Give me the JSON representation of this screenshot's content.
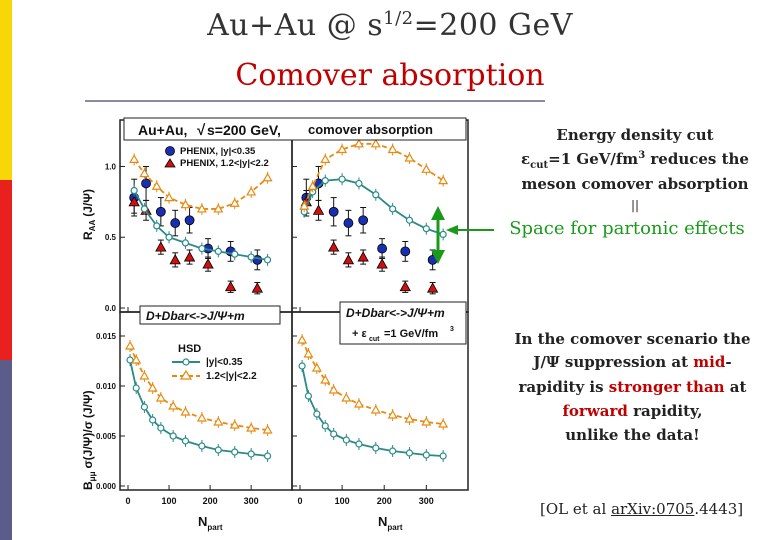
{
  "slide": {
    "title_prefix": "Au+Au @ s",
    "title_sup": "1/2",
    "title_suffix": "=200 GeV",
    "subtitle": "Comover absorption",
    "accent_colors": [
      "#f7d708",
      "#e8201e",
      "#5c5c8a"
    ]
  },
  "right_panel": {
    "energy_line1": "Energy density cut",
    "eps_symbol": "ε",
    "eps_sub": "cut",
    "eps_rest": "=1 GeV/fm",
    "eps_sup": "3",
    "eps_tail": " reduces the",
    "energy_line3": "meson comover absorption",
    "pipe": "||",
    "partonic": "Space for partonic effects",
    "p2_line1": "In the comover scenario the",
    "p2_line2a": "J/Ψ suppression at ",
    "p2_line2b": "mid",
    "p2_line2c": "-",
    "p2_line3a": "rapidity is ",
    "p2_line3b": "stronger than",
    "p2_line3c": " at",
    "p2_line4a": "forward",
    "p2_line4b": " rapidity,",
    "p2_line5": "unlike the data!",
    "citation_prefix": "[OL et al ",
    "citation_link": "arXiv:0705",
    "citation_suffix": ".4443]"
  },
  "figure": {
    "header_a": "Au+Au,",
    "header_sqrt": "√",
    "header_b": "s=200 GeV,",
    "header_c": "comover absorption",
    "legend_phenix_1": "PHENIX, |y|<0.35",
    "legend_phenix_2": "PHENIX, 1.2<|y|<2.2",
    "box_left": "D+Dbar<->J/Ψ+m",
    "box_right": "D+Dbar<->J/Ψ+m",
    "eps_note_a": "+ ε",
    "eps_note_sub": "cut",
    "eps_note_b": "=1 GeV/fm",
    "eps_note_sup": "3",
    "legend_hsd": "HSD",
    "legend_hsd_1": "|y|<0.35",
    "legend_hsd_2": "1.2<|y|<2.2",
    "top_ylabel": "R",
    "top_ylabel_2": "AA",
    "top_ylabel_3": "(J/Ψ)",
    "bot_ylabel": "B",
    "bot_ylabel_2": "μμ",
    "bot_ylabel_3": "σ(J/Ψ)/σ",
    "bot_ylabel_4": "(J/Ψ)",
    "xlabel_left": "N",
    "xlabel_right": "N",
    "xlabel_sub": "part"
  },
  "chart_data": {
    "type": "scatter",
    "title": "Au+Au, √s=200 GeV, comover absorption",
    "xlabel": "Npart",
    "xlim": [
      0,
      380
    ],
    "x_ticks": [
      "0",
      "100",
      "200",
      "300"
    ],
    "panels": [
      {
        "name": "top-left",
        "ylabel": "RAA (J/Ψ)",
        "ylim": [
          0,
          1.3
        ],
        "y_ticks": [
          "0.0",
          "0.5",
          "1.0"
        ],
        "series": [
          {
            "name": "PHENIX, |y|<0.35",
            "x": [
              15,
              44,
              80,
              115,
              150,
              195,
              250,
              315
            ],
            "y": [
              0.78,
              0.88,
              0.68,
              0.6,
              0.62,
              0.42,
              0.4,
              0.34
            ],
            "err": [
              0.13,
              0.12,
              0.1,
              0.09,
              0.09,
              0.07,
              0.07,
              0.07
            ]
          },
          {
            "name": "PHENIX, 1.2<|y|<2.2",
            "x": [
              15,
              44,
              80,
              115,
              150,
              195,
              250,
              315
            ],
            "y": [
              0.75,
              0.69,
              0.43,
              0.34,
              0.36,
              0.31,
              0.15,
              0.14
            ],
            "err": [
              0.08,
              0.07,
              0.05,
              0.05,
              0.05,
              0.05,
              0.04,
              0.04
            ]
          },
          {
            "name": "HSD |y|<0.35",
            "x": [
              15,
              40,
              70,
              100,
              140,
              180,
              220,
              260,
              300,
              340
            ],
            "y": [
              0.83,
              0.7,
              0.58,
              0.5,
              0.46,
              0.42,
              0.4,
              0.38,
              0.36,
              0.34
            ]
          },
          {
            "name": "HSD 1.2<|y|<2.2",
            "x": [
              15,
              40,
              70,
              100,
              140,
              180,
              220,
              260,
              300,
              340
            ],
            "y": [
              1.05,
              0.95,
              0.86,
              0.78,
              0.73,
              0.7,
              0.7,
              0.74,
              0.82,
              0.92
            ]
          }
        ]
      },
      {
        "name": "top-right",
        "ylabel": "RAA (J/Ψ)",
        "ylim": [
          0,
          1.3
        ],
        "y_ticks": [
          "0.0",
          "0.5",
          "1.0"
        ],
        "series": [
          {
            "name": "PHENIX, |y|<0.35",
            "x": [
              15,
              44,
              80,
              115,
              150,
              195,
              250,
              315
            ],
            "y": [
              0.78,
              0.88,
              0.68,
              0.6,
              0.62,
              0.42,
              0.4,
              0.34
            ],
            "err": [
              0.13,
              0.12,
              0.1,
              0.09,
              0.09,
              0.07,
              0.07,
              0.07
            ]
          },
          {
            "name": "PHENIX, 1.2<|y|<2.2",
            "x": [
              15,
              44,
              80,
              115,
              150,
              195,
              250,
              315
            ],
            "y": [
              0.75,
              0.69,
              0.43,
              0.34,
              0.36,
              0.31,
              0.15,
              0.14
            ],
            "err": [
              0.08,
              0.07,
              0.05,
              0.05,
              0.05,
              0.05,
              0.04,
              0.04
            ]
          },
          {
            "name": "HSD |y|<0.35",
            "x": [
              10,
              30,
              60,
              100,
              140,
              180,
              220,
              260,
              300,
              340
            ],
            "y": [
              0.68,
              0.82,
              0.9,
              0.91,
              0.88,
              0.8,
              0.7,
              0.62,
              0.56,
              0.52
            ]
          },
          {
            "name": "HSD 1.2<|y|<2.2",
            "x": [
              10,
              30,
              60,
              100,
              140,
              180,
              220,
              260,
              300,
              340
            ],
            "y": [
              0.72,
              0.86,
              1.05,
              1.12,
              1.16,
              1.16,
              1.12,
              1.06,
              0.98,
              0.9
            ]
          }
        ]
      },
      {
        "name": "bottom-left",
        "ylabel": "Bμμ σ(J/Ψ)/σ(J/Ψ)",
        "ylim": [
          0,
          0.017
        ],
        "y_ticks": [
          "0.000",
          "0.005",
          "0.010",
          "0.015"
        ],
        "series": [
          {
            "name": "HSD |y|<0.35",
            "x": [
              5,
              20,
              40,
              60,
              80,
              110,
              140,
              180,
              220,
              260,
              300,
              340
            ],
            "y": [
              0.0126,
              0.0098,
              0.0079,
              0.0066,
              0.0058,
              0.005,
              0.0045,
              0.004,
              0.0036,
              0.0034,
              0.0032,
              0.003
            ]
          },
          {
            "name": "HSD 1.2<|y|<2.2",
            "x": [
              5,
              20,
              40,
              60,
              80,
              110,
              140,
              180,
              220,
              260,
              300,
              340
            ],
            "y": [
              0.014,
              0.0126,
              0.011,
              0.0098,
              0.0088,
              0.008,
              0.0074,
              0.0068,
              0.0064,
              0.0061,
              0.0058,
              0.0056
            ]
          }
        ]
      },
      {
        "name": "bottom-right",
        "ylabel": "Bμμ σ(J/Ψ)/σ(J/Ψ)",
        "ylim": [
          0,
          0.017
        ],
        "y_ticks": [
          "0.000",
          "0.005",
          "0.010",
          "0.015"
        ],
        "series": [
          {
            "name": "HSD |y|<0.35",
            "x": [
              5,
              20,
              40,
              60,
              80,
              110,
              140,
              180,
              220,
              260,
              300,
              340
            ],
            "y": [
              0.012,
              0.009,
              0.0072,
              0.006,
              0.0052,
              0.0046,
              0.0042,
              0.0038,
              0.0035,
              0.0033,
              0.0031,
              0.003
            ]
          },
          {
            "name": "HSD 1.2<|y|<2.2",
            "x": [
              5,
              20,
              40,
              60,
              80,
              110,
              140,
              180,
              220,
              260,
              300,
              340
            ],
            "y": [
              0.0146,
              0.0132,
              0.0118,
              0.0106,
              0.0096,
              0.0088,
              0.0082,
              0.0076,
              0.0071,
              0.0067,
              0.0064,
              0.0062
            ]
          }
        ]
      }
    ]
  }
}
